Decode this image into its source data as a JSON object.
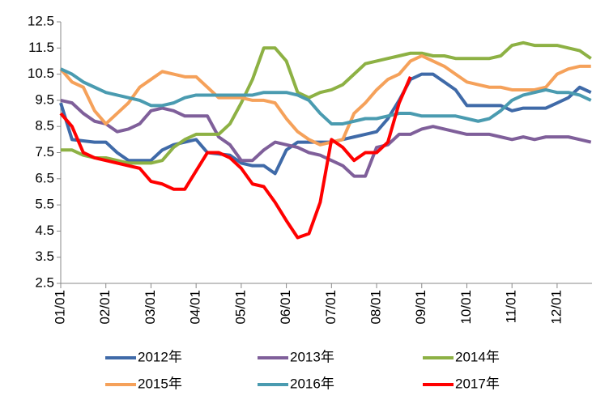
{
  "chart_data": {
    "type": "line",
    "categories": [
      "01/01",
      null,
      null,
      null,
      "02/01",
      null,
      null,
      null,
      "03/01",
      null,
      null,
      null,
      "04/01",
      null,
      null,
      null,
      "05/01",
      null,
      null,
      null,
      "06/01",
      null,
      null,
      null,
      "07/01",
      null,
      null,
      null,
      "08/01",
      null,
      null,
      null,
      "09/01",
      null,
      null,
      null,
      "10/01",
      null,
      null,
      null,
      "11/01",
      null,
      null,
      null,
      "12/01",
      null,
      null,
      null
    ],
    "ylim": [
      2.5,
      12.5
    ],
    "yticks": [
      2.5,
      3.5,
      4.5,
      5.5,
      6.5,
      7.5,
      8.5,
      9.5,
      10.5,
      11.5,
      12.5
    ],
    "grid": false,
    "legend": "bottom",
    "series": [
      {
        "name": "2012年",
        "color": "#3f6aa8",
        "values": [
          9.4,
          8.0,
          7.95,
          7.9,
          7.9,
          7.5,
          7.2,
          7.2,
          7.2,
          7.6,
          7.8,
          7.9,
          8.0,
          7.5,
          7.45,
          7.4,
          7.1,
          7.0,
          7.0,
          6.7,
          7.6,
          7.9,
          7.9,
          7.9,
          7.9,
          8.0,
          8.1,
          8.2,
          8.3,
          8.8,
          9.5,
          10.3,
          10.5,
          10.5,
          10.2,
          9.9,
          9.3,
          9.3,
          9.3,
          9.3,
          9.1,
          9.2,
          9.2,
          9.2,
          9.4,
          9.6,
          10.0,
          9.8
        ]
      },
      {
        "name": "2013年",
        "color": "#7f5f9a",
        "values": [
          9.5,
          9.4,
          9.0,
          8.7,
          8.6,
          8.3,
          8.4,
          8.6,
          9.1,
          9.2,
          9.1,
          8.9,
          8.9,
          8.9,
          8.1,
          7.8,
          7.2,
          7.2,
          7.6,
          7.9,
          7.8,
          7.7,
          7.5,
          7.4,
          7.2,
          7.0,
          6.6,
          6.6,
          7.7,
          7.8,
          8.2,
          8.2,
          8.4,
          8.5,
          8.4,
          8.3,
          8.2,
          8.2,
          8.2,
          8.1,
          8.0,
          8.1,
          8.0,
          8.1,
          8.1,
          8.1,
          8.0,
          7.9
        ]
      },
      {
        "name": "2014年",
        "color": "#8db144",
        "values": [
          7.6,
          7.6,
          7.4,
          7.3,
          7.3,
          7.2,
          7.1,
          7.1,
          7.1,
          7.2,
          7.7,
          8.0,
          8.2,
          8.2,
          8.2,
          8.6,
          9.4,
          10.3,
          11.5,
          11.5,
          11.0,
          9.8,
          9.6,
          9.8,
          9.9,
          10.1,
          10.5,
          10.9,
          11.0,
          11.1,
          11.2,
          11.3,
          11.3,
          11.2,
          11.2,
          11.1,
          11.1,
          11.1,
          11.1,
          11.2,
          11.6,
          11.7,
          11.6,
          11.6,
          11.6,
          11.5,
          11.4,
          11.1
        ]
      },
      {
        "name": "2015年",
        "color": "#f5a15a",
        "values": [
          10.7,
          10.2,
          10.0,
          9.1,
          8.6,
          9.0,
          9.4,
          10.0,
          10.3,
          10.6,
          10.5,
          10.4,
          10.4,
          10.0,
          9.6,
          9.6,
          9.6,
          9.5,
          9.5,
          9.4,
          8.8,
          8.3,
          8.0,
          7.8,
          7.9,
          8.0,
          9.0,
          9.4,
          9.9,
          10.3,
          10.5,
          11.0,
          11.2,
          11.0,
          10.8,
          10.5,
          10.2,
          10.1,
          10.0,
          10.0,
          9.9,
          9.9,
          9.9,
          10.0,
          10.5,
          10.7,
          10.8,
          10.8
        ]
      },
      {
        "name": "2016年",
        "color": "#4a9bb0",
        "values": [
          10.7,
          10.5,
          10.2,
          10.0,
          9.8,
          9.7,
          9.6,
          9.5,
          9.3,
          9.3,
          9.4,
          9.6,
          9.7,
          9.7,
          9.7,
          9.7,
          9.7,
          9.7,
          9.8,
          9.8,
          9.8,
          9.7,
          9.5,
          9.0,
          8.6,
          8.6,
          8.7,
          8.8,
          8.8,
          8.9,
          9.0,
          9.0,
          8.9,
          8.9,
          8.9,
          8.9,
          8.8,
          8.7,
          8.8,
          9.1,
          9.5,
          9.7,
          9.8,
          9.9,
          9.8,
          9.8,
          9.7,
          9.5
        ]
      },
      {
        "name": "2017年",
        "color": "#ff0000",
        "values": [
          9.0,
          8.5,
          7.5,
          7.3,
          7.2,
          7.1,
          7.0,
          6.9,
          6.4,
          6.3,
          6.1,
          6.1,
          6.8,
          7.5,
          7.5,
          7.3,
          6.9,
          6.3,
          6.2,
          5.6,
          4.9,
          4.25,
          4.4,
          5.6,
          8.0,
          7.7,
          7.2,
          7.5,
          7.5,
          7.9,
          9.4,
          10.4,
          null,
          null,
          null,
          null,
          null,
          null,
          null,
          null,
          null,
          null,
          null,
          null,
          null,
          null,
          null,
          null
        ]
      }
    ]
  }
}
